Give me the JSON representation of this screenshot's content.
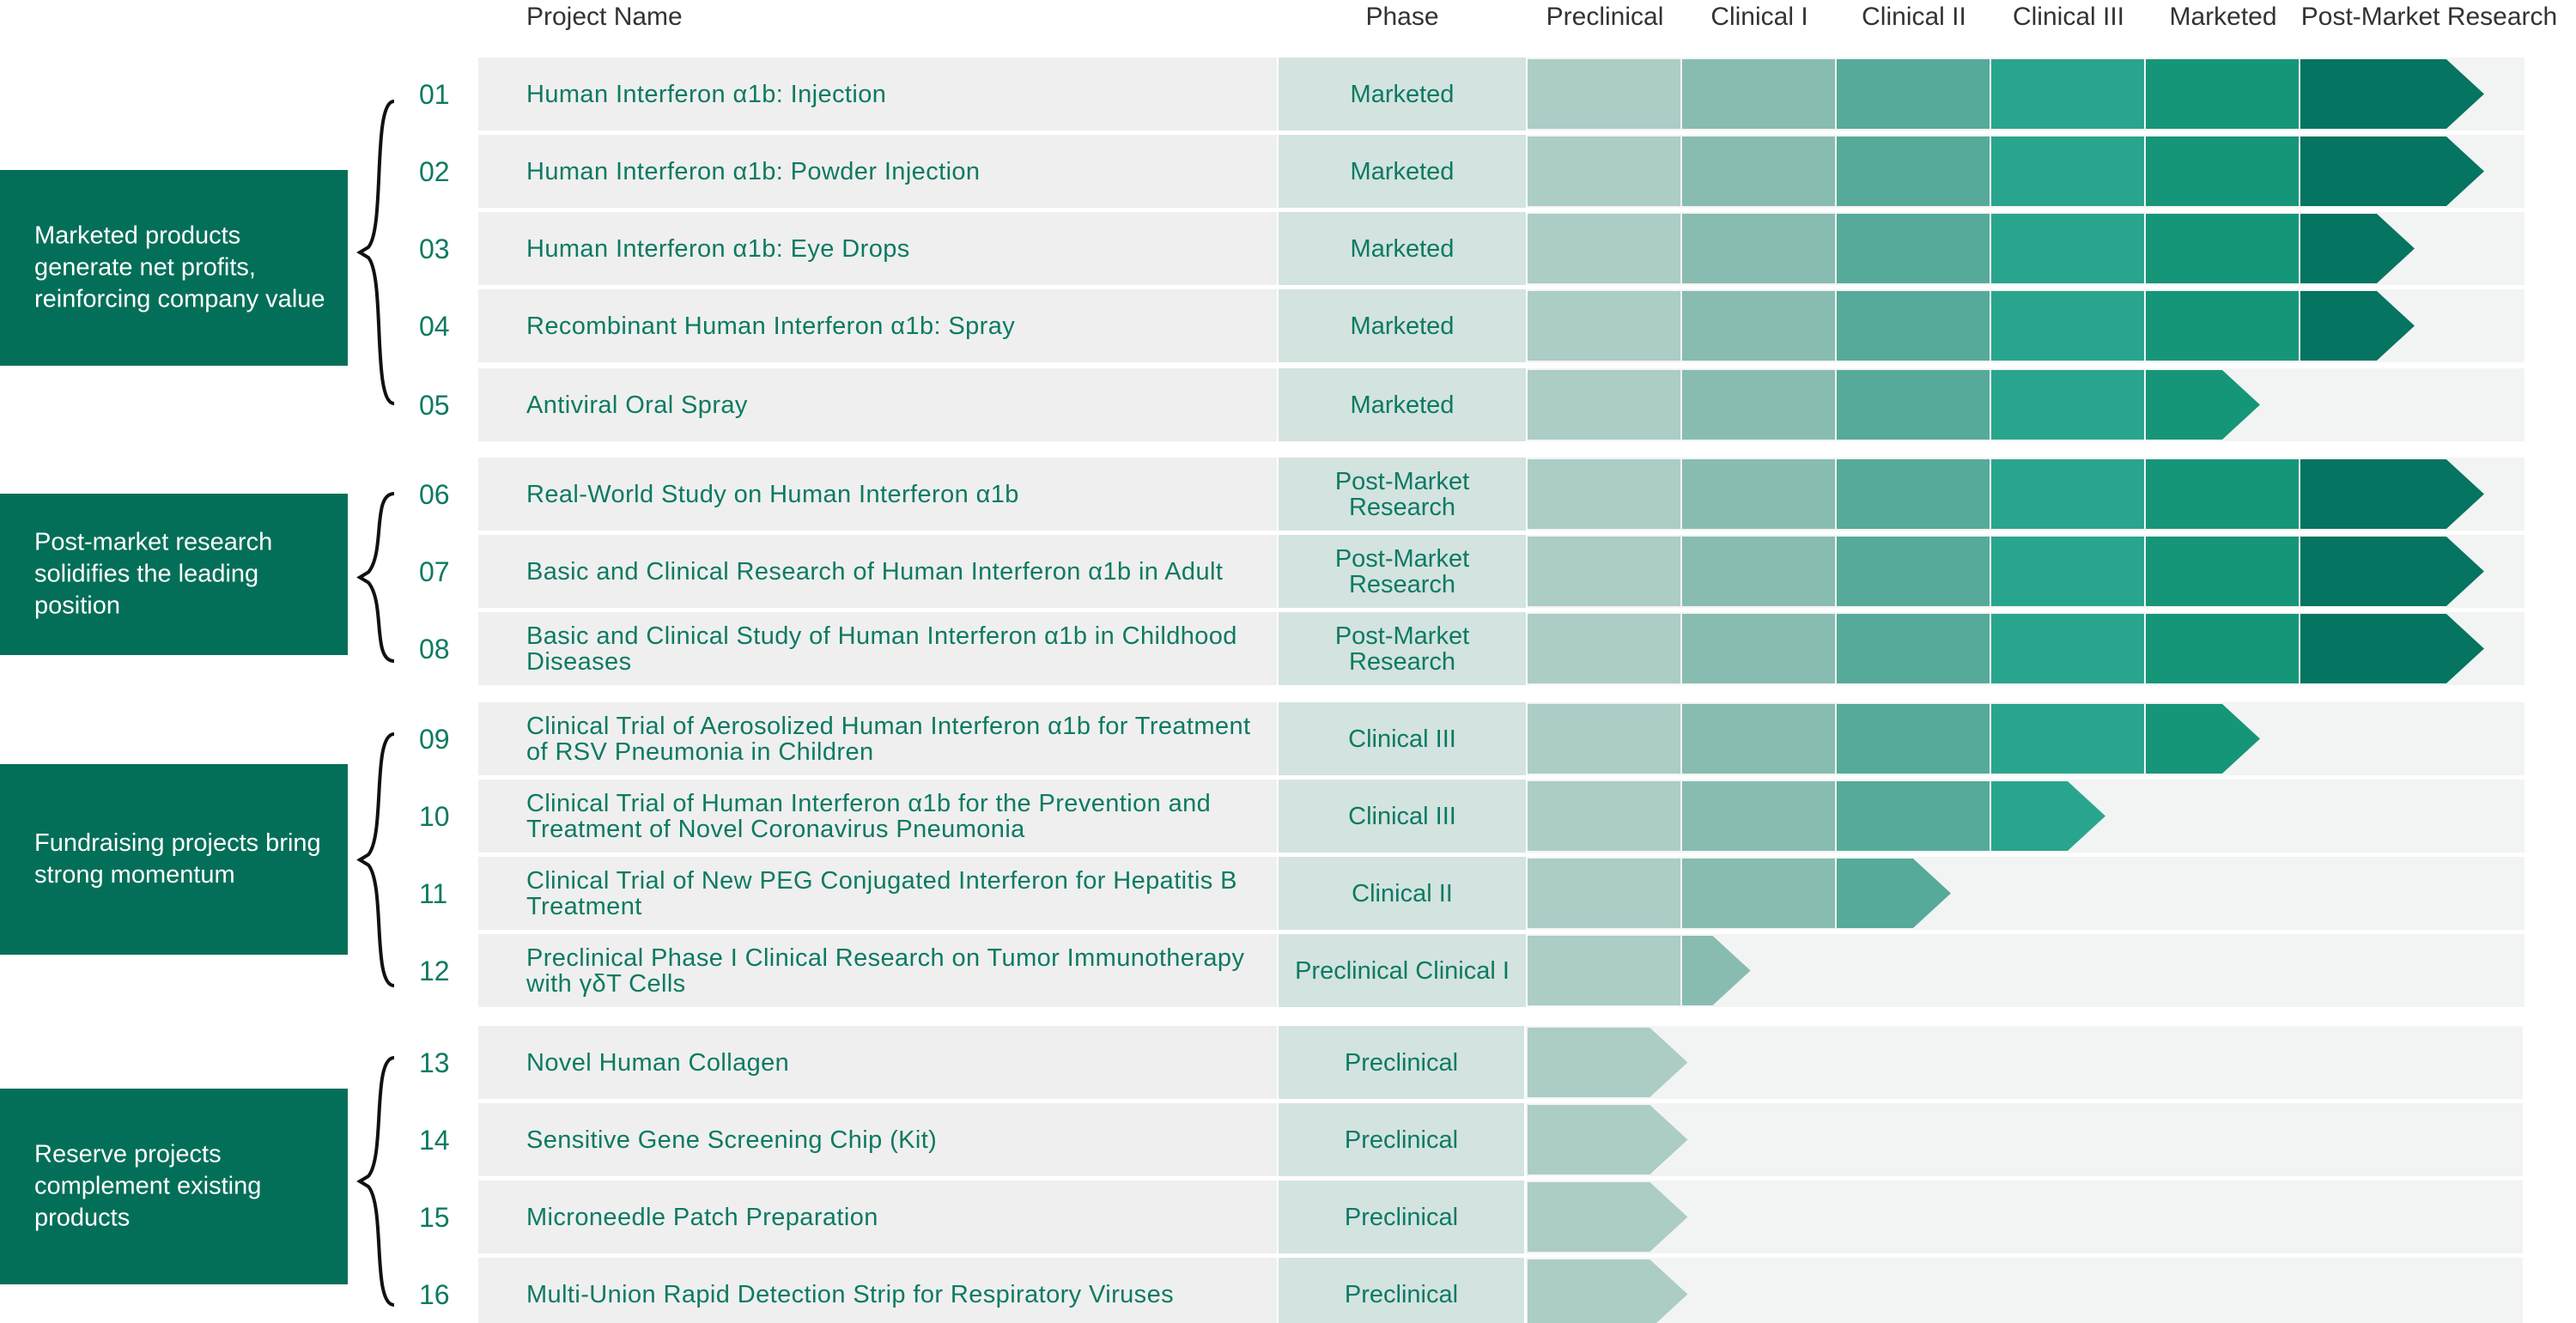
{
  "headers": {
    "project_name": "Project Name",
    "phase": "Phase",
    "stages": [
      "Preclinical",
      "Clinical I",
      "Clinical II",
      "Clinical III",
      "Marketed",
      "Post-Market Research"
    ]
  },
  "stage_colors": [
    "#acccc6",
    "#88bcb1",
    "#56aa9a",
    "#2aa58d",
    "#169678",
    "#057461"
  ],
  "groups": [
    {
      "label": "Marketed products generate net profits, reinforcing company value"
    },
    {
      "label": "Post-market research solidifies the leading position"
    },
    {
      "label": "Fundraising projects bring strong momentum"
    },
    {
      "label": "Reserve projects complement existing products"
    }
  ],
  "projects": [
    {
      "num": "01",
      "name": "Human Interferon α1b: Injection",
      "phase": "Marketed",
      "progress": 6
    },
    {
      "num": "02",
      "name": "Human Interferon α1b: Powder Injection",
      "phase": "Marketed",
      "progress": 6
    },
    {
      "num": "03",
      "name": "Human Interferon α1b: Eye Drops",
      "phase": "Marketed",
      "progress": 5.5
    },
    {
      "num": "04",
      "name": "Recombinant Human Interferon α1b: Spray",
      "phase": "Marketed",
      "progress": 5.5
    },
    {
      "num": "05",
      "name": "Antiviral Oral Spray",
      "phase": "Marketed",
      "progress": 4.5
    },
    {
      "num": "06",
      "name": "Real-World Study on Human Interferon α1b",
      "phase": "Post-Market Research",
      "progress": 6
    },
    {
      "num": "07",
      "name": "Basic and Clinical Research of Human Interferon α1b in Adult",
      "phase": "Post-Market Research",
      "progress": 6
    },
    {
      "num": "08",
      "name": "Basic and Clinical Study of Human Interferon α1b in Childhood Diseases",
      "phase": "Post-Market Research",
      "progress": 6
    },
    {
      "num": "09",
      "name": "Clinical Trial of Aerosolized Human Interferon α1b for Treatment of RSV Pneumonia in Children",
      "phase": "Clinical III",
      "progress": 4.5
    },
    {
      "num": "10",
      "name": "Clinical Trial of Human Interferon α1b for the Prevention and Treatment of Novel Coronavirus Pneumonia",
      "phase": "Clinical III",
      "progress": 3.5
    },
    {
      "num": "11",
      "name": "Clinical Trial of New PEG Conjugated Interferon for Hepatitis B Treatment",
      "phase": "Clinical II",
      "progress": 2.5
    },
    {
      "num": "12",
      "name": "Preclinical Phase I Clinical Research on Tumor Immunotherapy with γδT Cells",
      "phase": "Preclinical Clinical I",
      "progress": 1.2
    },
    {
      "num": "13",
      "name": "Novel Human Collagen",
      "phase": "Preclinical",
      "progress": 0.8
    },
    {
      "num": "14",
      "name": "Sensitive Gene Screening Chip (Kit)",
      "phase": "Preclinical",
      "progress": 0.8
    },
    {
      "num": "15",
      "name": "Microneedle Patch Preparation",
      "phase": "Preclinical",
      "progress": 0.8
    },
    {
      "num": "16",
      "name": "Multi-Union Rapid Detection Strip for Respiratory Viruses",
      "phase": "Preclinical",
      "progress": 0.8
    }
  ]
}
